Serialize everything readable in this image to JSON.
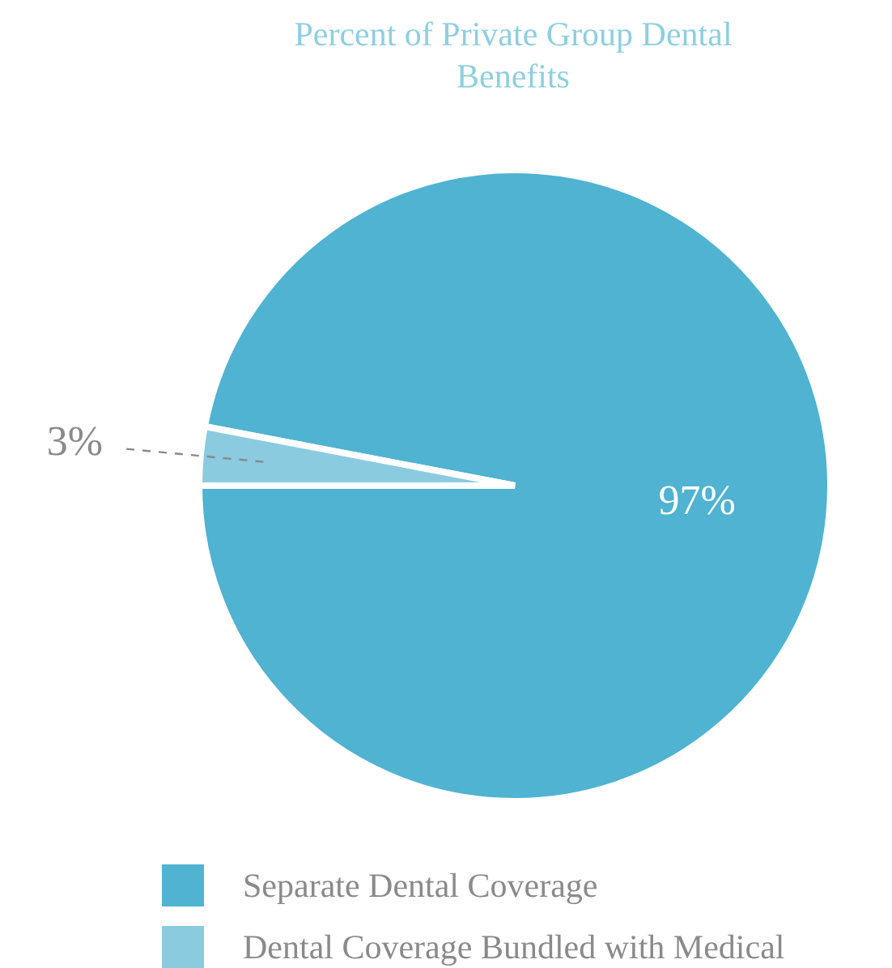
{
  "chart_data": {
    "type": "pie",
    "title": "Percent of Private Group Dental Benefits",
    "categories": [
      "Separate Dental Coverage",
      "Dental Coverage Bundled with Medical"
    ],
    "values": [
      97,
      3
    ],
    "colors": [
      "#4fb3d1",
      "#8acbdf"
    ],
    "value_labels": [
      "97%",
      "3%"
    ],
    "legend": "bottom"
  }
}
